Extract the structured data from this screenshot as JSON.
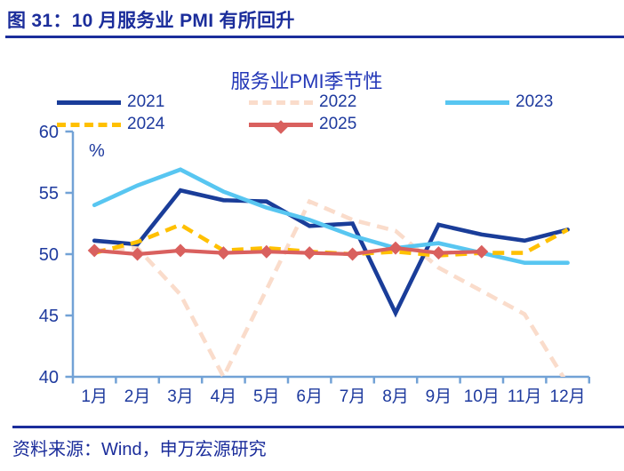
{
  "figure": {
    "title": "图 31：10 月服务业 PMI 有所回升",
    "source": "资料来源：Wind，申万宏源研究"
  },
  "chart_data": {
    "type": "line",
    "title": "服务业PMI季节性",
    "unit_label": "%",
    "categories": [
      "1月",
      "2月",
      "3月",
      "4月",
      "5月",
      "6月",
      "7月",
      "8月",
      "9月",
      "10月",
      "11月",
      "12月"
    ],
    "yticks": [
      40,
      45,
      50,
      55,
      60
    ],
    "ylim": [
      40,
      60
    ],
    "legend_position": "top",
    "grid": false,
    "series": [
      {
        "name": "2021",
        "color": "#1A3D99",
        "style": "solid",
        "marker": "none",
        "values": [
          51.1,
          50.8,
          55.2,
          54.4,
          54.3,
          52.3,
          52.5,
          45.2,
          52.4,
          51.6,
          51.1,
          52.0
        ]
      },
      {
        "name": "2022",
        "color": "#FADCCB",
        "style": "dashed",
        "marker": "none",
        "values": [
          50.3,
          50.5,
          46.7,
          40.0,
          47.1,
          54.3,
          52.8,
          51.9,
          48.9,
          47.0,
          45.1,
          39.4
        ]
      },
      {
        "name": "2023",
        "color": "#58C6F1",
        "style": "solid",
        "marker": "none",
        "values": [
          54.0,
          55.6,
          56.9,
          55.1,
          53.8,
          52.8,
          51.5,
          50.5,
          50.9,
          50.1,
          49.3,
          49.3
        ]
      },
      {
        "name": "2024",
        "color": "#FFC000",
        "style": "dashed",
        "marker": "none",
        "values": [
          50.1,
          51.0,
          52.4,
          50.3,
          50.5,
          50.2,
          50.0,
          50.2,
          49.9,
          50.1,
          50.1,
          52.0
        ]
      },
      {
        "name": "2025",
        "color": "#D9605E",
        "style": "solid",
        "marker": "diamond",
        "values": [
          50.3,
          50.0,
          50.3,
          50.1,
          50.2,
          50.1,
          50.0,
          50.5,
          50.1,
          50.2
        ]
      }
    ],
    "colors": {
      "axis": "#72A2D6",
      "tick_label": "#1E3A9E",
      "chart_title": "#2438B8",
      "header": "#1B2D9B"
    }
  }
}
